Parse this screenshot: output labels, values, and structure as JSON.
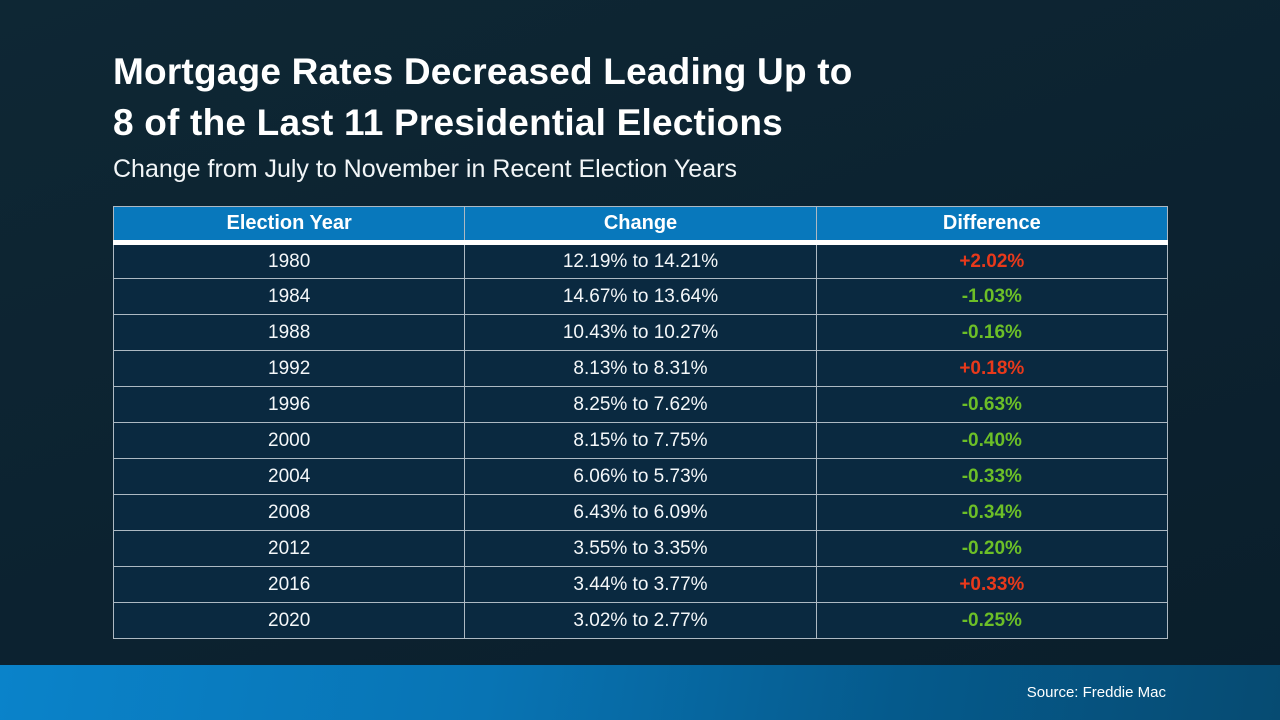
{
  "slide": {
    "title_line1": "Mortgage Rates Decreased Leading Up to",
    "title_line2": "8 of the Last 11 Presidential Elections",
    "subtitle": "Change from July to November in Recent Election Years",
    "source": "Source: Freddie Mac"
  },
  "colors": {
    "header_bg": "#0878BC",
    "row_bg": "#0A2940",
    "page_bg_top": "#0E2734",
    "page_bg_bottom": "#0A1E2B",
    "increase_text": "#E8391B",
    "decrease_text": "#6CBF27",
    "grid_border": "#ADB9C3",
    "bottom_bar_left": "#0A83CA",
    "bottom_bar_right": "#064B72"
  },
  "chart_data": {
    "type": "table",
    "title": "Mortgage Rates Decreased Leading Up to 8 of the Last 11 Presidential Elections",
    "subtitle": "Change from July to November in Recent Election Years",
    "columns": [
      "Election Year",
      "Change",
      "Difference"
    ],
    "rows": [
      [
        "1980",
        "12.19% to 14.21%",
        "+2.02%"
      ],
      [
        "1984",
        "14.67% to 13.64%",
        "-1.03%"
      ],
      [
        "1988",
        "10.43% to 10.27%",
        "-0.16%"
      ],
      [
        "1992",
        "8.13% to 8.31%",
        "+0.18%"
      ],
      [
        "1996",
        "8.25% to 7.62%",
        "-0.63%"
      ],
      [
        "2000",
        "8.15% to 7.75%",
        "-0.40%"
      ],
      [
        "2004",
        "6.06% to 5.73%",
        "-0.33%"
      ],
      [
        "2008",
        "6.43% to 6.09%",
        "-0.34%"
      ],
      [
        "2012",
        "3.55% to 3.35%",
        "-0.20%"
      ],
      [
        "2016",
        "3.44% to 3.77%",
        "+0.33%"
      ],
      [
        "2020",
        "3.02% to 2.77%",
        "-0.25%"
      ]
    ]
  }
}
